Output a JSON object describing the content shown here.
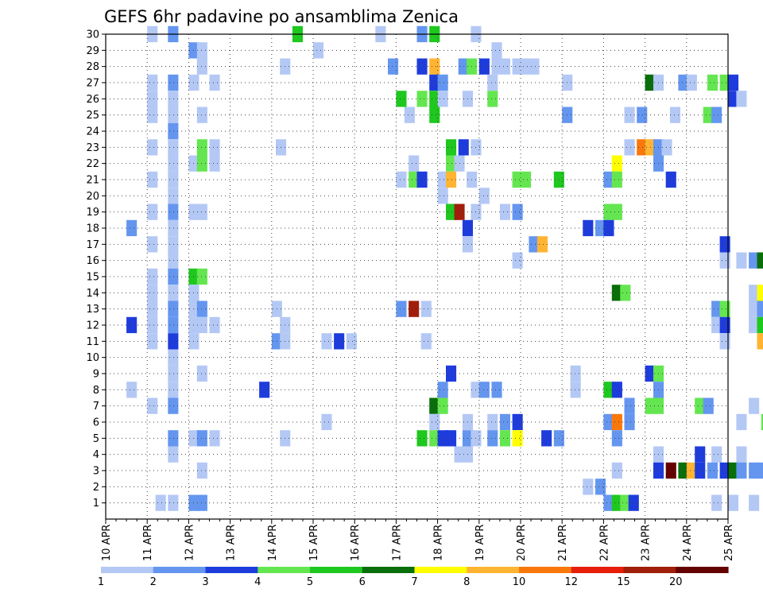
{
  "chart_data": {
    "type": "heatmap",
    "title": "GEFS 6hr padavine po ansamblima Zenica",
    "x_ticks": [
      "10 APR",
      "11 APR",
      "12 APR",
      "13 APR",
      "14 APR",
      "15 APR",
      "16 APR",
      "17 APR",
      "18 APR",
      "19 APR",
      "20 APR",
      "21 APR",
      "22 APR",
      "23 APR",
      "24 APR",
      "25 APR"
    ],
    "y_ticks": [
      1,
      2,
      3,
      4,
      5,
      6,
      7,
      8,
      9,
      10,
      11,
      12,
      13,
      14,
      15,
      16,
      17,
      18,
      19,
      20,
      21,
      22,
      23,
      24,
      25,
      26,
      27,
      28,
      29,
      30
    ],
    "x_range": [
      "10 APR",
      "25 APR"
    ],
    "y_range": [
      0,
      30
    ],
    "grid": true,
    "legend": {
      "position": "bottom",
      "bins": [
        {
          "color": "#b4c8f5"
        },
        {
          "color": "#6496f0"
        },
        {
          "color": "#1e3cdc"
        },
        {
          "color": "#64e650"
        },
        {
          "color": "#1ec81e"
        },
        {
          "color": "#0a6e0a"
        },
        {
          "color": "#ffff00"
        },
        {
          "color": "#ffb432"
        },
        {
          "color": "#fa780a"
        },
        {
          "color": "#e61e0a"
        },
        {
          "color": "#a01e0a"
        },
        {
          "color": "#640000"
        }
      ],
      "labels": [
        "1",
        "2",
        "3",
        "4",
        "5",
        "6",
        "7",
        "8",
        "10",
        "12",
        "15",
        "20"
      ]
    },
    "cells": [
      [
        0.1,
        30,
        "#b4c8f5"
      ],
      [
        0.15,
        30,
        "#6496f0"
      ],
      [
        0.45,
        30,
        "#1ec81e"
      ],
      [
        0.65,
        30,
        "#b4c8f5"
      ],
      [
        0.75,
        30,
        "#6496f0"
      ],
      [
        0.78,
        30,
        "#1ec81e"
      ],
      [
        0.88,
        30,
        "#b4c8f5"
      ],
      [
        0.2,
        29,
        "#6496f0"
      ],
      [
        0.22,
        29,
        "#b4c8f5"
      ],
      [
        0.5,
        29,
        "#b4c8f5"
      ],
      [
        0.93,
        29,
        "#b4c8f5"
      ],
      [
        0.22,
        28,
        "#b4c8f5"
      ],
      [
        0.42,
        28,
        "#b4c8f5"
      ],
      [
        0.68,
        28,
        "#6496f0"
      ],
      [
        0.75,
        28,
        "#1e3cdc"
      ],
      [
        0.78,
        28,
        "#ffb432"
      ],
      [
        0.85,
        28,
        "#6496f0"
      ],
      [
        0.87,
        28,
        "#64e650"
      ],
      [
        0.9,
        28,
        "#1e3cdc"
      ],
      [
        0.93,
        28,
        "#b4c8f5"
      ],
      [
        0.95,
        28,
        "#b4c8f5"
      ],
      [
        0.98,
        28,
        "#b4c8f5"
      ],
      [
        1.0,
        28,
        "#b4c8f5"
      ],
      [
        1.02,
        28,
        "#b4c8f5"
      ],
      [
        0.1,
        27,
        "#b4c8f5"
      ],
      [
        0.15,
        27,
        "#6496f0"
      ],
      [
        0.2,
        27,
        "#b4c8f5"
      ],
      [
        0.25,
        27,
        "#b4c8f5"
      ],
      [
        0.78,
        27,
        "#1e3cdc"
      ],
      [
        0.8,
        27,
        "#6496f0"
      ],
      [
        0.92,
        27,
        "#b4c8f5"
      ],
      [
        1.1,
        27,
        "#b4c8f5"
      ],
      [
        1.3,
        27,
        "#0a6e0a"
      ],
      [
        1.32,
        27,
        "#b4c8f5"
      ],
      [
        1.38,
        27,
        "#6496f0"
      ],
      [
        1.4,
        27,
        "#b4c8f5"
      ],
      [
        1.45,
        27,
        "#64e650"
      ],
      [
        1.48,
        27,
        "#64e650"
      ],
      [
        1.5,
        27,
        "#1e3cdc"
      ],
      [
        0.1,
        26,
        "#b4c8f5"
      ],
      [
        0.15,
        26,
        "#b4c8f5"
      ],
      [
        0.7,
        26,
        "#1ec81e"
      ],
      [
        0.75,
        26,
        "#64e650"
      ],
      [
        0.78,
        26,
        "#1ec81e"
      ],
      [
        0.8,
        26,
        "#b4c8f5"
      ],
      [
        0.86,
        26,
        "#b4c8f5"
      ],
      [
        0.92,
        26,
        "#64e650"
      ],
      [
        1.5,
        26,
        "#1e3cdc"
      ],
      [
        1.52,
        26,
        "#b4c8f5"
      ],
      [
        0.1,
        25,
        "#b4c8f5"
      ],
      [
        0.15,
        25,
        "#b4c8f5"
      ],
      [
        0.22,
        25,
        "#b4c8f5"
      ],
      [
        0.72,
        25,
        "#b4c8f5"
      ],
      [
        0.78,
        25,
        "#1ec81e"
      ],
      [
        1.1,
        25,
        "#6496f0"
      ],
      [
        1.25,
        25,
        "#b4c8f5"
      ],
      [
        1.28,
        25,
        "#6496f0"
      ],
      [
        1.36,
        25,
        "#b4c8f5"
      ],
      [
        1.44,
        25,
        "#64e650"
      ],
      [
        1.46,
        25,
        "#6496f0"
      ],
      [
        0.15,
        24,
        "#6496f0"
      ],
      [
        0.1,
        23,
        "#b4c8f5"
      ],
      [
        0.15,
        23,
        "#b4c8f5"
      ],
      [
        0.22,
        23,
        "#64e650"
      ],
      [
        0.25,
        23,
        "#b4c8f5"
      ],
      [
        0.41,
        23,
        "#b4c8f5"
      ],
      [
        0.82,
        23,
        "#1ec81e"
      ],
      [
        0.85,
        23,
        "#1e3cdc"
      ],
      [
        0.88,
        23,
        "#b4c8f5"
      ],
      [
        1.25,
        23,
        "#b4c8f5"
      ],
      [
        1.28,
        23,
        "#fa780a"
      ],
      [
        1.3,
        23,
        "#ffb432"
      ],
      [
        1.32,
        23,
        "#6496f0"
      ],
      [
        1.34,
        23,
        "#b4c8f5"
      ],
      [
        0.15,
        22,
        "#b4c8f5"
      ],
      [
        0.2,
        22,
        "#b4c8f5"
      ],
      [
        0.22,
        22,
        "#64e650"
      ],
      [
        0.25,
        22,
        "#b4c8f5"
      ],
      [
        0.73,
        22,
        "#b4c8f5"
      ],
      [
        0.82,
        22,
        "#64e650"
      ],
      [
        0.84,
        22,
        "#b4c8f5"
      ],
      [
        1.32,
        22,
        "#6496f0"
      ],
      [
        1.22,
        22,
        "#ffff00"
      ],
      [
        0.1,
        21,
        "#b4c8f5"
      ],
      [
        0.15,
        21,
        "#b4c8f5"
      ],
      [
        0.7,
        21,
        "#b4c8f5"
      ],
      [
        0.73,
        21,
        "#64e650"
      ],
      [
        0.75,
        21,
        "#1e3cdc"
      ],
      [
        0.8,
        21,
        "#b4c8f5"
      ],
      [
        0.82,
        21,
        "#ffb432"
      ],
      [
        0.87,
        21,
        "#b4c8f5"
      ],
      [
        0.98,
        21,
        "#64e650"
      ],
      [
        1.0,
        21,
        "#64e650"
      ],
      [
        1.08,
        21,
        "#1ec81e"
      ],
      [
        1.2,
        21,
        "#6496f0"
      ],
      [
        1.22,
        21,
        "#64e650"
      ],
      [
        1.35,
        21,
        "#1e3cdc"
      ],
      [
        0.15,
        20,
        "#b4c8f5"
      ],
      [
        0.8,
        20,
        "#b4c8f5"
      ],
      [
        0.9,
        20,
        "#b4c8f5"
      ],
      [
        0.1,
        19,
        "#b4c8f5"
      ],
      [
        0.15,
        19,
        "#6496f0"
      ],
      [
        0.2,
        19,
        "#b4c8f5"
      ],
      [
        0.22,
        19,
        "#b4c8f5"
      ],
      [
        0.82,
        19,
        "#1ec81e"
      ],
      [
        0.84,
        19,
        "#a01e0a"
      ],
      [
        0.88,
        19,
        "#b4c8f5"
      ],
      [
        0.95,
        19,
        "#b4c8f5"
      ],
      [
        0.98,
        19,
        "#6496f0"
      ],
      [
        1.2,
        19,
        "#64e650"
      ],
      [
        1.22,
        19,
        "#64e650"
      ],
      [
        0.05,
        18,
        "#6496f0"
      ],
      [
        0.15,
        18,
        "#b4c8f5"
      ],
      [
        0.86,
        18,
        "#1e3cdc"
      ],
      [
        1.15,
        18,
        "#1e3cdc"
      ],
      [
        1.18,
        18,
        "#6496f0"
      ],
      [
        1.2,
        18,
        "#1e3cdc"
      ],
      [
        0.1,
        17,
        "#b4c8f5"
      ],
      [
        0.15,
        17,
        "#b4c8f5"
      ],
      [
        0.86,
        17,
        "#b4c8f5"
      ],
      [
        1.02,
        17,
        "#6496f0"
      ],
      [
        1.04,
        17,
        "#ffb432"
      ],
      [
        1.48,
        17,
        "#1e3cdc"
      ],
      [
        0.15,
        16,
        "#b4c8f5"
      ],
      [
        0.98,
        16,
        "#b4c8f5"
      ],
      [
        1.48,
        16,
        "#b4c8f5"
      ],
      [
        1.52,
        16,
        "#b4c8f5"
      ],
      [
        1.55,
        16,
        "#6496f0"
      ],
      [
        1.57,
        16,
        "#0a6e0a"
      ],
      [
        0.1,
        15,
        "#b4c8f5"
      ],
      [
        0.15,
        15,
        "#6496f0"
      ],
      [
        0.2,
        15,
        "#1ec81e"
      ],
      [
        0.22,
        15,
        "#64e650"
      ],
      [
        0.1,
        14,
        "#b4c8f5"
      ],
      [
        0.15,
        14,
        "#b4c8f5"
      ],
      [
        0.2,
        14,
        "#b4c8f5"
      ],
      [
        1.22,
        14,
        "#0a6e0a"
      ],
      [
        1.24,
        14,
        "#64e650"
      ],
      [
        1.55,
        14,
        "#b4c8f5"
      ],
      [
        1.57,
        14,
        "#ffff00"
      ],
      [
        1.6,
        14,
        "#1ec81e"
      ],
      [
        0.1,
        13,
        "#b4c8f5"
      ],
      [
        0.15,
        13,
        "#6496f0"
      ],
      [
        0.2,
        13,
        "#b4c8f5"
      ],
      [
        0.22,
        13,
        "#6496f0"
      ],
      [
        0.4,
        13,
        "#b4c8f5"
      ],
      [
        0.7,
        13,
        "#6496f0"
      ],
      [
        0.73,
        13,
        "#a01e0a"
      ],
      [
        0.76,
        13,
        "#b4c8f5"
      ],
      [
        1.46,
        13,
        "#6496f0"
      ],
      [
        1.48,
        13,
        "#64e650"
      ],
      [
        1.55,
        13,
        "#b4c8f5"
      ],
      [
        1.57,
        13,
        "#6496f0"
      ],
      [
        0.05,
        12,
        "#1e3cdc"
      ],
      [
        0.1,
        12,
        "#b4c8f5"
      ],
      [
        0.15,
        12,
        "#6496f0"
      ],
      [
        0.2,
        12,
        "#b4c8f5"
      ],
      [
        0.22,
        12,
        "#b4c8f5"
      ],
      [
        0.25,
        12,
        "#b4c8f5"
      ],
      [
        0.42,
        12,
        "#b4c8f5"
      ],
      [
        1.46,
        12,
        "#b4c8f5"
      ],
      [
        1.48,
        12,
        "#1e3cdc"
      ],
      [
        1.55,
        12,
        "#b4c8f5"
      ],
      [
        1.57,
        12,
        "#1ec81e"
      ],
      [
        1.6,
        12,
        "#0a6e0a"
      ],
      [
        0.1,
        11,
        "#b4c8f5"
      ],
      [
        0.15,
        11,
        "#1e3cdc"
      ],
      [
        0.2,
        11,
        "#b4c8f5"
      ],
      [
        0.4,
        11,
        "#6496f0"
      ],
      [
        0.42,
        11,
        "#b4c8f5"
      ],
      [
        0.52,
        11,
        "#b4c8f5"
      ],
      [
        0.55,
        11,
        "#1e3cdc"
      ],
      [
        0.58,
        11,
        "#b4c8f5"
      ],
      [
        0.76,
        11,
        "#b4c8f5"
      ],
      [
        1.48,
        11,
        "#b4c8f5"
      ],
      [
        1.57,
        11,
        "#ffb432"
      ],
      [
        1.6,
        11,
        "#e61e0a"
      ],
      [
        0.15,
        10,
        "#b4c8f5"
      ],
      [
        0.15,
        9,
        "#b4c8f5"
      ],
      [
        0.22,
        9,
        "#b4c8f5"
      ],
      [
        0.82,
        9,
        "#1e3cdc"
      ],
      [
        1.12,
        9,
        "#b4c8f5"
      ],
      [
        1.3,
        9,
        "#1e3cdc"
      ],
      [
        1.32,
        9,
        "#64e650"
      ],
      [
        0.05,
        8,
        "#b4c8f5"
      ],
      [
        0.15,
        8,
        "#b4c8f5"
      ],
      [
        0.37,
        8,
        "#1e3cdc"
      ],
      [
        0.8,
        8,
        "#6496f0"
      ],
      [
        0.88,
        8,
        "#b4c8f5"
      ],
      [
        0.9,
        8,
        "#6496f0"
      ],
      [
        0.93,
        8,
        "#6496f0"
      ],
      [
        1.12,
        8,
        "#b4c8f5"
      ],
      [
        1.2,
        8,
        "#1ec81e"
      ],
      [
        1.22,
        8,
        "#1e3cdc"
      ],
      [
        1.32,
        8,
        "#6496f0"
      ],
      [
        0.1,
        7,
        "#b4c8f5"
      ],
      [
        0.15,
        7,
        "#6496f0"
      ],
      [
        0.78,
        7,
        "#0a6e0a"
      ],
      [
        0.8,
        7,
        "#64e650"
      ],
      [
        1.25,
        7,
        "#6496f0"
      ],
      [
        1.3,
        7,
        "#64e650"
      ],
      [
        1.32,
        7,
        "#64e650"
      ],
      [
        1.42,
        7,
        "#64e650"
      ],
      [
        1.44,
        7,
        "#6496f0"
      ],
      [
        1.55,
        7,
        "#b4c8f5"
      ],
      [
        0.52,
        6,
        "#b4c8f5"
      ],
      [
        0.78,
        6,
        "#b4c8f5"
      ],
      [
        0.86,
        6,
        "#b4c8f5"
      ],
      [
        0.92,
        6,
        "#b4c8f5"
      ],
      [
        0.95,
        6,
        "#6496f0"
      ],
      [
        0.98,
        6,
        "#1e3cdc"
      ],
      [
        1.2,
        6,
        "#6496f0"
      ],
      [
        1.22,
        6,
        "#fa780a"
      ],
      [
        1.25,
        6,
        "#6496f0"
      ],
      [
        1.52,
        6,
        "#b4c8f5"
      ],
      [
        1.58,
        6,
        "#64e650"
      ],
      [
        0.15,
        5,
        "#6496f0"
      ],
      [
        0.2,
        5,
        "#b4c8f5"
      ],
      [
        0.22,
        5,
        "#6496f0"
      ],
      [
        0.25,
        5,
        "#b4c8f5"
      ],
      [
        0.42,
        5,
        "#b4c8f5"
      ],
      [
        0.75,
        5,
        "#1ec81e"
      ],
      [
        0.78,
        5,
        "#64e650"
      ],
      [
        0.8,
        5,
        "#1e3cdc"
      ],
      [
        0.82,
        5,
        "#1e3cdc"
      ],
      [
        0.86,
        5,
        "#6496f0"
      ],
      [
        0.88,
        5,
        "#b4c8f5"
      ],
      [
        0.92,
        5,
        "#6496f0"
      ],
      [
        0.95,
        5,
        "#64e650"
      ],
      [
        0.98,
        5,
        "#ffff00"
      ],
      [
        1.05,
        5,
        "#1e3cdc"
      ],
      [
        1.08,
        5,
        "#6496f0"
      ],
      [
        1.22,
        5,
        "#6496f0"
      ],
      [
        0.15,
        4,
        "#b4c8f5"
      ],
      [
        0.84,
        4,
        "#b4c8f5"
      ],
      [
        0.86,
        4,
        "#b4c8f5"
      ],
      [
        1.32,
        4,
        "#b4c8f5"
      ],
      [
        1.42,
        4,
        "#1e3cdc"
      ],
      [
        1.46,
        4,
        "#b4c8f5"
      ],
      [
        1.52,
        4,
        "#b4c8f5"
      ],
      [
        0.22,
        3,
        "#b4c8f5"
      ],
      [
        1.32,
        3,
        "#1e3cdc"
      ],
      [
        1.35,
        3,
        "#640000"
      ],
      [
        1.38,
        3,
        "#0a6e0a"
      ],
      [
        1.4,
        3,
        "#ffb432"
      ],
      [
        1.42,
        3,
        "#1e3cdc"
      ],
      [
        1.45,
        3,
        "#6496f0"
      ],
      [
        1.48,
        3,
        "#1e3cdc"
      ],
      [
        1.5,
        3,
        "#0a6e0a"
      ],
      [
        1.52,
        3,
        "#6496f0"
      ],
      [
        1.55,
        3,
        "#6496f0"
      ],
      [
        1.57,
        3,
        "#6496f0"
      ],
      [
        1.6,
        3,
        "#64e650"
      ],
      [
        1.22,
        3,
        "#b4c8f5"
      ],
      [
        1.15,
        2,
        "#b4c8f5"
      ],
      [
        1.18,
        2,
        "#6496f0"
      ],
      [
        0.12,
        1,
        "#b4c8f5"
      ],
      [
        0.15,
        1,
        "#b4c8f5"
      ],
      [
        0.2,
        1,
        "#6496f0"
      ],
      [
        0.22,
        1,
        "#6496f0"
      ],
      [
        1.2,
        1,
        "#6496f0"
      ],
      [
        1.22,
        1,
        "#1ec81e"
      ],
      [
        1.24,
        1,
        "#64e650"
      ],
      [
        1.26,
        1,
        "#1e3cdc"
      ],
      [
        1.46,
        1,
        "#b4c8f5"
      ],
      [
        1.5,
        1,
        "#b4c8f5"
      ],
      [
        1.55,
        1,
        "#b4c8f5"
      ]
    ]
  }
}
